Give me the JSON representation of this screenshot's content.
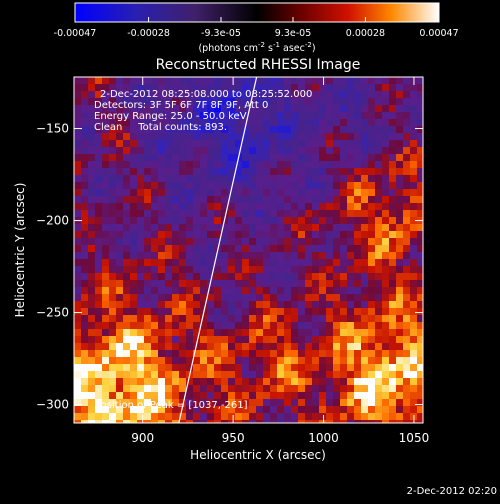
{
  "chart_data": {
    "type": "heatmap",
    "title": "Reconstructed RHESSI Image",
    "xlabel": "Heliocentric X (arcsec)",
    "ylabel": "Heliocentric Y (arcsec)",
    "xlim": [
      862,
      1055
    ],
    "ylim": [
      -310,
      -122
    ],
    "x_ticks": [
      900,
      950,
      1000,
      1050
    ],
    "y_ticks": [
      -300,
      -250,
      -200,
      -150
    ],
    "colorbar": {
      "min": -0.00047,
      "max": 0.00047,
      "tick_values": [
        -0.00047,
        -0.00028,
        -9.3e-05,
        9.3e-05,
        0.00028,
        0.00047
      ],
      "tick_labels": [
        "-0.00047",
        "-0.00028",
        "-9.3e-05",
        "9.3e-05",
        "0.00028",
        "0.00047"
      ],
      "label_prefix": "(photons cm",
      "label_exp1": "-2",
      "label_mid": " s",
      "label_exp2": "-1",
      "label_mid2": " asec",
      "label_exp3": "-2",
      "label_suffix": ")"
    },
    "annotations": {
      "line1": "2-Dec-2012 08:25:08.000 to 08:25:52.000",
      "line2": "Detectors: 3F 5F 6F 7F 8F 9F, Att 0",
      "line3": "Energy Range: 25.0 - 50.0 keV",
      "line4": "Clean     Total counts: 893.",
      "peak": "Position of Peak = [1037,-261]"
    },
    "limb_line": {
      "x": [
        920,
        963
      ],
      "y": [
        -310,
        -122
      ]
    },
    "grid": false,
    "colors": {
      "background": "#000000",
      "foreground": "#ffffff"
    }
  },
  "footer": {
    "timestamp": "2-Dec-2012 02:20"
  }
}
